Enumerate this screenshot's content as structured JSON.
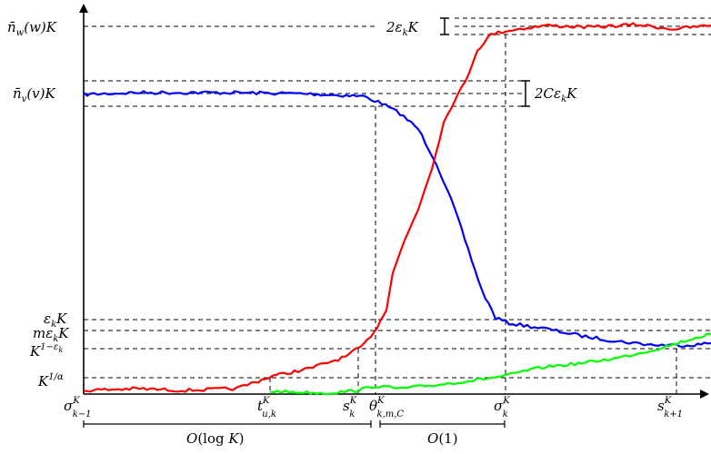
{
  "y_labels": {
    "nw": "n̄w(w)K",
    "nv": "n̄v(v)K",
    "eps": "εkK",
    "meps": "mεkK",
    "k1eps": "K1−εk",
    "k1alpha": "K1/α"
  },
  "x_labels": {
    "sigma_km1": "σK k−1",
    "t_uk": "tK u,k",
    "s_k": "sK k",
    "theta": "θK k,m,C",
    "sigma_k": "σK k",
    "s_kp1": "sK k+1"
  },
  "bands": {
    "wide": "2εkK",
    "narrow": "2CεkK"
  },
  "intervals": {
    "first": "O(log K)",
    "second": "O(1)"
  },
  "series": {
    "red": {
      "color": "#ff0000"
    },
    "blue": {
      "color": "#0000ff"
    },
    "green": {
      "color": "#00ff00"
    }
  }
}
